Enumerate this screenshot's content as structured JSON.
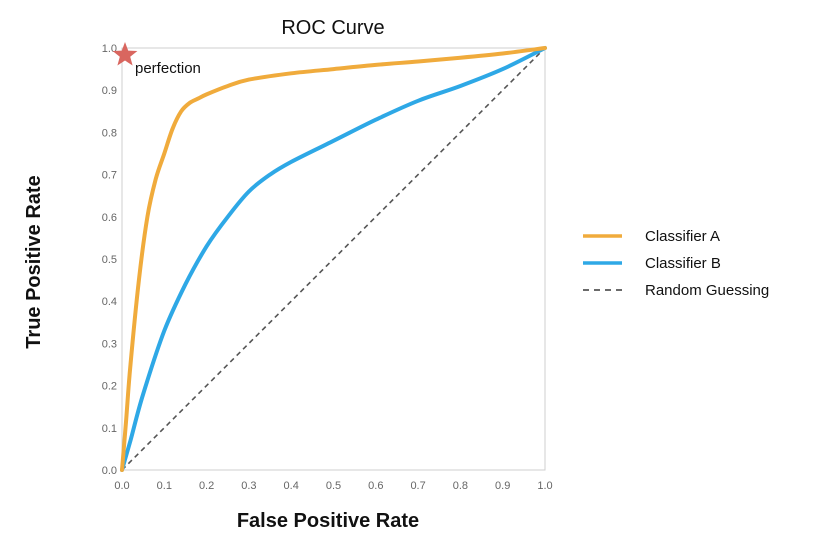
{
  "chart_data": {
    "type": "line",
    "title": "ROC Curve",
    "xlabel": "False Positive Rate",
    "ylabel": "True Positive Rate",
    "xlim": [
      0,
      1
    ],
    "ylim": [
      0,
      1
    ],
    "xticks": [
      "0.0",
      "0.1",
      "0.2",
      "0.3",
      "0.4",
      "0.5",
      "0.6",
      "0.7",
      "0.8",
      "0.9",
      "1.0"
    ],
    "yticks": [
      "0.0",
      "0.1",
      "0.2",
      "0.3",
      "0.4",
      "0.5",
      "0.6",
      "0.7",
      "0.8",
      "0.9",
      "1.0"
    ],
    "grid": false,
    "legend_position": "right",
    "series": [
      {
        "name": "Classifier A",
        "color": "#f0ab3c",
        "style": "solid",
        "x": [
          0.0,
          0.01,
          0.02,
          0.04,
          0.06,
          0.08,
          0.1,
          0.12,
          0.14,
          0.16,
          0.18,
          0.2,
          0.25,
          0.3,
          0.4,
          0.5,
          0.6,
          0.7,
          0.8,
          0.9,
          1.0
        ],
        "y": [
          0.0,
          0.12,
          0.25,
          0.45,
          0.6,
          0.69,
          0.75,
          0.81,
          0.85,
          0.87,
          0.88,
          0.89,
          0.91,
          0.925,
          0.94,
          0.95,
          0.96,
          0.968,
          0.977,
          0.987,
          1.0
        ]
      },
      {
        "name": "Classifier B",
        "color": "#2ea8e6",
        "style": "solid",
        "x": [
          0.0,
          0.02,
          0.05,
          0.1,
          0.15,
          0.2,
          0.25,
          0.3,
          0.35,
          0.4,
          0.5,
          0.6,
          0.7,
          0.8,
          0.9,
          1.0
        ],
        "y": [
          0.0,
          0.07,
          0.18,
          0.33,
          0.44,
          0.53,
          0.6,
          0.66,
          0.7,
          0.73,
          0.78,
          0.83,
          0.875,
          0.91,
          0.95,
          1.0
        ]
      },
      {
        "name": "Random Guessing",
        "color": "#555555",
        "style": "dashed",
        "x": [
          0.0,
          1.0
        ],
        "y": [
          0.0,
          1.0
        ]
      }
    ],
    "annotations": [
      {
        "text": "perfection",
        "x": 0.0,
        "y": 1.0,
        "marker": "star",
        "marker_color": "#d9665f"
      }
    ]
  }
}
